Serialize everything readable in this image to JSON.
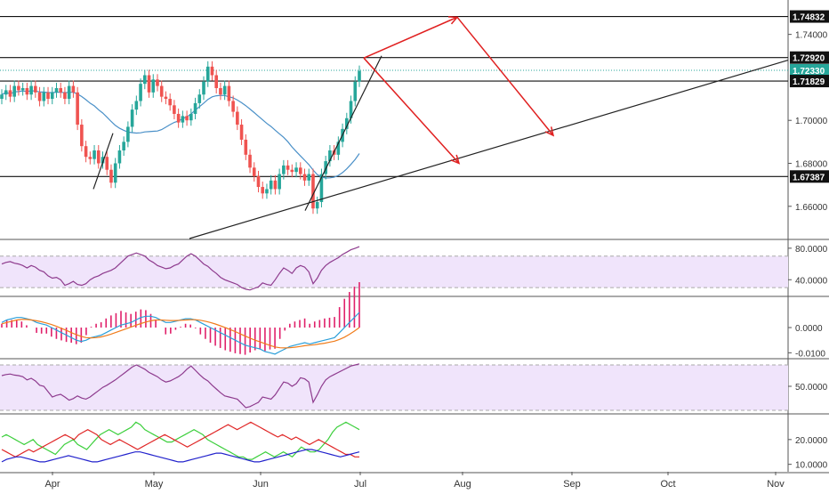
{
  "chart_data": {
    "type": "candlestick",
    "x_axis": {
      "tick_labels": [
        "Apr",
        "May",
        "Jun",
        "Jul",
        "Aug",
        "Sep",
        "Oct",
        "Nov"
      ]
    },
    "main_panel": {
      "y_range": [
        1.645,
        1.756
      ],
      "tick_labels": [
        {
          "label": "1.74000",
          "value": 1.74
        },
        {
          "label": "1.70000",
          "value": 1.7
        },
        {
          "label": "1.68000",
          "value": 1.68
        },
        {
          "label": "1.66000",
          "value": 1.66
        }
      ],
      "price_levels": [
        {
          "label": "1.74832",
          "value": 1.74832,
          "style": "horizontal-line"
        },
        {
          "label": "1.72920",
          "value": 1.7292,
          "style": "horizontal-line"
        },
        {
          "label": "1.72330",
          "value": 1.7233,
          "style": "current-price",
          "color": "#26a69a"
        },
        {
          "label": "1.71829",
          "value": 1.71829,
          "style": "horizontal-line"
        },
        {
          "label": "1.67387",
          "value": 1.67387,
          "style": "horizontal-line"
        }
      ],
      "candles_close": [
        1.712,
        1.714,
        1.711,
        1.716,
        1.714,
        1.715,
        1.712,
        1.716,
        1.713,
        1.709,
        1.713,
        1.71,
        1.713,
        1.715,
        1.713,
        1.71,
        1.716,
        1.713,
        1.698,
        1.688,
        1.683,
        1.682,
        1.686,
        1.68,
        1.683,
        1.677,
        1.671,
        1.68,
        1.686,
        1.69,
        1.697,
        1.705,
        1.709,
        1.717,
        1.721,
        1.713,
        1.719,
        1.716,
        1.711,
        1.71,
        1.707,
        1.703,
        1.699,
        1.702,
        1.7,
        1.703,
        1.708,
        1.712,
        1.718,
        1.725,
        1.721,
        1.715,
        1.712,
        1.716,
        1.709,
        1.704,
        1.698,
        1.691,
        1.684,
        1.678,
        1.674,
        1.669,
        1.666,
        1.668,
        1.672,
        1.668,
        1.675,
        1.679,
        1.677,
        1.676,
        1.678,
        1.675,
        1.672,
        1.675,
        1.659,
        1.662,
        1.675,
        1.681,
        1.686,
        1.684,
        1.69,
        1.696,
        1.701,
        1.709,
        1.718,
        1.723
      ],
      "moving_average_color": "#4a90c8",
      "trendlines": [
        {
          "from": [
            "Apr",
            1.668
          ],
          "to": [
            "Apr",
            1.694
          ],
          "color": "#222222"
        },
        {
          "from": [
            "Jun",
            1.658
          ],
          "to": [
            "Jul",
            1.73
          ],
          "color": "#222222"
        },
        {
          "from": [
            "May",
            1.645
          ],
          "to": [
            "Nov",
            1.728
          ],
          "color": "#222222"
        }
      ],
      "projection_arrows": {
        "color": "#e02020",
        "paths": [
          [
            [
              "Jul",
              1.729
            ],
            [
              "Aug",
              1.748
            ]
          ],
          [
            [
              "Aug",
              1.748
            ],
            [
              "Sep",
              1.693
            ]
          ],
          [
            [
              "Jul",
              1.729
            ],
            [
              "Aug",
              1.68
            ]
          ]
        ]
      }
    },
    "indicators": [
      {
        "name": "oscillator-1",
        "tick_labels": [
          {
            "label": "80.0000",
            "value": 80
          },
          {
            "label": "40.0000",
            "value": 40
          }
        ],
        "y_range": [
          20,
          90
        ],
        "band": [
          30,
          70
        ],
        "line_color": "#8e3b8e",
        "band_fill": "#f0e4fb",
        "values": [
          60,
          62,
          63,
          61,
          60,
          58,
          55,
          58,
          56,
          52,
          50,
          45,
          42,
          43,
          40,
          33,
          35,
          38,
          34,
          33,
          35,
          40,
          43,
          45,
          48,
          50,
          52,
          55,
          60,
          65,
          70,
          72,
          74,
          72,
          70,
          65,
          62,
          58,
          56,
          54,
          55,
          58,
          60,
          65,
          70,
          73,
          70,
          65,
          60,
          57,
          52,
          48,
          43,
          40,
          38,
          36,
          34,
          30,
          28,
          27,
          29,
          31,
          36,
          34,
          33,
          40,
          48,
          55,
          52,
          48,
          55,
          58,
          56,
          50,
          35,
          42,
          52,
          58,
          62,
          65,
          68,
          72,
          75,
          78,
          80,
          82
        ]
      },
      {
        "name": "oscillator-2",
        "tick_labels": [
          {
            "label": "0.0000",
            "value": 0
          },
          {
            "label": "-0.0100",
            "value": -0.01
          }
        ],
        "y_range": [
          -0.012,
          0.012
        ],
        "line_colors": [
          "#2b9fd9",
          "#f07c1b"
        ],
        "histogram_color": "#e0206a",
        "macd": [
          0.002,
          0.003,
          0.0035,
          0.004,
          0.004,
          0.0035,
          0.003,
          0.002,
          0.0015,
          0.001,
          0.0,
          -0.001,
          -0.002,
          -0.003,
          -0.004,
          -0.005,
          -0.0055,
          -0.005,
          -0.004,
          -0.0035,
          -0.003,
          -0.002,
          -0.001,
          0.0,
          0.001,
          0.0015,
          0.002,
          0.003,
          0.004,
          0.0045,
          0.0045,
          0.004,
          0.003,
          0.002,
          0.002,
          0.0025,
          0.003,
          0.0035,
          0.0035,
          0.003,
          0.002,
          0.001,
          0.0,
          -0.001,
          -0.002,
          -0.003,
          -0.004,
          -0.005,
          -0.006,
          -0.007,
          -0.0075,
          -0.008,
          -0.0085,
          -0.0095,
          -0.01,
          -0.0105,
          -0.0095,
          -0.0085,
          -0.0075,
          -0.007,
          -0.0065,
          -0.006,
          -0.0065,
          -0.006,
          -0.0055,
          -0.005,
          -0.0045,
          -0.004,
          -0.002,
          0.0,
          0.002,
          0.004,
          0.006
        ],
        "signal": [
          0.0015,
          0.002,
          0.0025,
          0.003,
          0.0032,
          0.0032,
          0.003,
          0.0027,
          0.0023,
          0.0018,
          0.0012,
          0.0005,
          -0.0003,
          -0.0011,
          -0.002,
          -0.0028,
          -0.0035,
          -0.004,
          -0.0041,
          -0.004,
          -0.0037,
          -0.0032,
          -0.0026,
          -0.0019,
          -0.0012,
          -0.0005,
          0.0002,
          0.0009,
          0.0016,
          0.0022,
          0.0027,
          0.003,
          0.003,
          0.0029,
          0.0028,
          0.0028,
          0.0029,
          0.003,
          0.0031,
          0.0031,
          0.0029,
          0.0025,
          0.002,
          0.0014,
          0.0007,
          0.0,
          -0.0008,
          -0.0016,
          -0.0025,
          -0.0034,
          -0.0042,
          -0.005,
          -0.0057,
          -0.0064,
          -0.0071,
          -0.0077,
          -0.008,
          -0.0081,
          -0.008,
          -0.0078,
          -0.0075,
          -0.0072,
          -0.007,
          -0.0068,
          -0.0065,
          -0.0062,
          -0.0058,
          -0.0054,
          -0.0047,
          -0.0038,
          -0.0027,
          -0.0014,
          0.0
        ]
      },
      {
        "name": "oscillator-3",
        "tick_labels": [
          {
            "label": "50.0000",
            "value": 50
          }
        ],
        "y_range": [
          0,
          100
        ],
        "band": [
          5,
          90
        ],
        "line_color": "#8e3b8e",
        "band_fill": "#f0e4fb",
        "values": [
          70,
          72,
          73,
          71,
          70,
          68,
          62,
          65,
          60,
          52,
          50,
          40,
          30,
          33,
          35,
          30,
          24,
          27,
          32,
          28,
          26,
          30,
          36,
          42,
          48,
          52,
          57,
          62,
          68,
          74,
          80,
          86,
          90,
          86,
          82,
          76,
          72,
          68,
          62,
          58,
          60,
          64,
          68,
          74,
          82,
          88,
          80,
          72,
          65,
          60,
          52,
          45,
          38,
          32,
          30,
          28,
          26,
          18,
          10,
          12,
          16,
          20,
          30,
          28,
          26,
          34,
          46,
          58,
          56,
          50,
          55,
          66,
          64,
          58,
          20,
          34,
          50,
          62,
          68,
          72,
          76,
          80,
          84,
          88,
          90,
          92
        ]
      },
      {
        "name": "directional-index",
        "tick_labels": [
          {
            "label": "20.0000",
            "value": 20
          },
          {
            "label": "10.0000",
            "value": 10
          }
        ],
        "y_range": [
          7,
          30
        ],
        "line_colors": [
          "#3ccf3c",
          "#e02626",
          "#2222cc"
        ],
        "plus_di": [
          21,
          22,
          21,
          20,
          19,
          18,
          19,
          20,
          18,
          17,
          16,
          15,
          14,
          16,
          18,
          19,
          20,
          18,
          17,
          16,
          18,
          20,
          22,
          23,
          24,
          23,
          22,
          23,
          24,
          25,
          27,
          26,
          24,
          23,
          22,
          21,
          20,
          19,
          19,
          20,
          21,
          22,
          23,
          24,
          23,
          22,
          20,
          19,
          18,
          17,
          16,
          15,
          14,
          13,
          13,
          12,
          12,
          13,
          14,
          15,
          14,
          13,
          14,
          15,
          14,
          13,
          15,
          17,
          16,
          15,
          15,
          16,
          18,
          20,
          23,
          25,
          26,
          27,
          26,
          25,
          24
        ],
        "minus_di": [
          16,
          15,
          14,
          13,
          14,
          15,
          16,
          15,
          16,
          17,
          18,
          19,
          20,
          21,
          22,
          21,
          20,
          22,
          23,
          24,
          23,
          22,
          20,
          19,
          18,
          19,
          20,
          19,
          18,
          17,
          16,
          17,
          18,
          19,
          20,
          21,
          22,
          21,
          20,
          19,
          18,
          17,
          18,
          19,
          20,
          21,
          22,
          23,
          24,
          25,
          26,
          25,
          24,
          25,
          26,
          27,
          26,
          25,
          24,
          23,
          22,
          21,
          22,
          21,
          20,
          21,
          20,
          19,
          18,
          19,
          20,
          19,
          18,
          17,
          16,
          15,
          14,
          14,
          13,
          13
        ],
        "adx": [
          11,
          12,
          12.5,
          13,
          13,
          12.5,
          12,
          11.5,
          11,
          11,
          11.5,
          12,
          12.5,
          13,
          13.5,
          13,
          12.5,
          12,
          11.5,
          11,
          11,
          11.5,
          12,
          12.5,
          13,
          13.5,
          14,
          14.5,
          15,
          15,
          14.5,
          14,
          13.5,
          13,
          12.5,
          12,
          11.5,
          11,
          11,
          11.5,
          12,
          12.5,
          13,
          13.5,
          14,
          14.5,
          14.5,
          14,
          13.5,
          13,
          12.5,
          12,
          11.5,
          11,
          11,
          11.5,
          12,
          12.5,
          13,
          13.5,
          14,
          14.5,
          15,
          15.5,
          16,
          16,
          15.5,
          15,
          14.5,
          14,
          13.5,
          13,
          13.5,
          14,
          14.5,
          15
        ]
      }
    ]
  }
}
